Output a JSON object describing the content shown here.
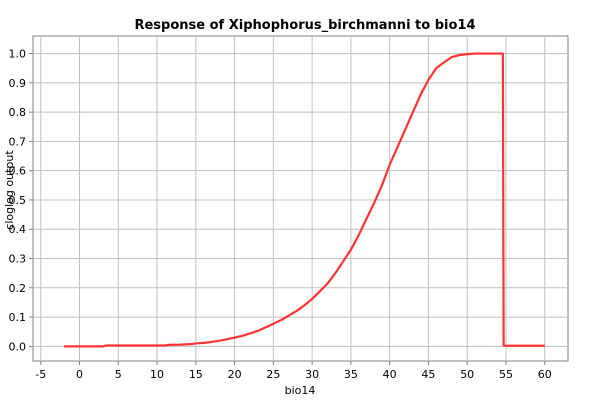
{
  "chart_data": {
    "type": "line",
    "title": "Response of Xiphophorus_birchmanni to bio14",
    "xlabel": "bio14",
    "ylabel": "cloglog output",
    "xlim": [
      -6,
      63
    ],
    "ylim": [
      -0.05,
      1.06
    ],
    "xticks": [
      -5,
      0,
      5,
      10,
      15,
      20,
      25,
      30,
      35,
      40,
      45,
      50,
      55,
      60
    ],
    "yticks": [
      0.0,
      0.1,
      0.2,
      0.3,
      0.4,
      0.5,
      0.6,
      0.7,
      0.8,
      0.9,
      1.0
    ],
    "grid": true,
    "legend": "none",
    "color": "#ff3333",
    "series": [
      {
        "x": [
          -2,
          0,
          3,
          3.5,
          5,
          8,
          11,
          11.5,
          13,
          14.5,
          15,
          16,
          17,
          18,
          19,
          20,
          21,
          22,
          23,
          24,
          25,
          26,
          27,
          28,
          29,
          30,
          31,
          32,
          33,
          34,
          35,
          36,
          37,
          38,
          39,
          40,
          41,
          42,
          43,
          44,
          45,
          46,
          47,
          48,
          49,
          50,
          51,
          52,
          53,
          54,
          54.6,
          54.7,
          55,
          57,
          60
        ],
        "y": [
          0.0,
          0.0,
          0.0,
          0.003,
          0.003,
          0.003,
          0.003,
          0.005,
          0.006,
          0.008,
          0.01,
          0.012,
          0.015,
          0.019,
          0.024,
          0.03,
          0.036,
          0.044,
          0.053,
          0.065,
          0.077,
          0.09,
          0.105,
          0.121,
          0.14,
          0.162,
          0.188,
          0.215,
          0.25,
          0.29,
          0.33,
          0.38,
          0.435,
          0.49,
          0.55,
          0.62,
          0.68,
          0.74,
          0.8,
          0.86,
          0.91,
          0.95,
          0.97,
          0.988,
          0.995,
          0.998,
          1.0,
          1.0,
          1.0,
          1.0,
          1.0,
          0.003,
          0.002,
          0.002,
          0.002
        ]
      }
    ]
  }
}
